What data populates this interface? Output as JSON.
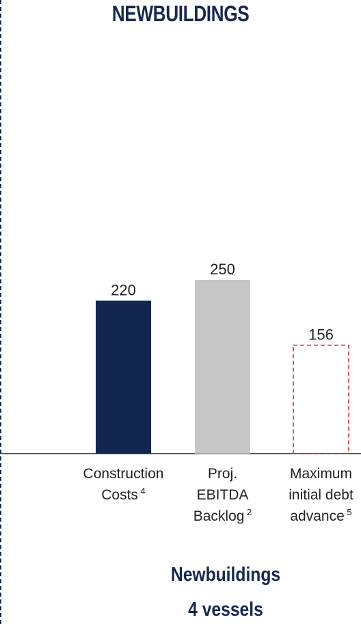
{
  "title": "NEWBUILDINGS",
  "footer": {
    "line1": "Newbuildings",
    "line2": "4 vessels"
  },
  "colors": {
    "navy": "#13264f",
    "gray": "#c7c7c7",
    "red_dash": "#c0392b",
    "text": "#222222"
  },
  "chart_data": {
    "type": "bar",
    "ylim": [
      0,
      250
    ],
    "bars": [
      {
        "label_lines": [
          "Construction",
          "Costs"
        ],
        "footnote": "4",
        "value": 220,
        "style": "solid",
        "color": "#13264f"
      },
      {
        "label_lines": [
          "Proj.",
          "EBITDA",
          "Backlog"
        ],
        "footnote": "2",
        "value": 250,
        "style": "solid",
        "color": "#c7c7c7"
      },
      {
        "label_lines": [
          "Maximum",
          "initial debt",
          "advance"
        ],
        "footnote": "5",
        "value": 156,
        "style": "dashed",
        "color": "#c0392b"
      }
    ]
  }
}
